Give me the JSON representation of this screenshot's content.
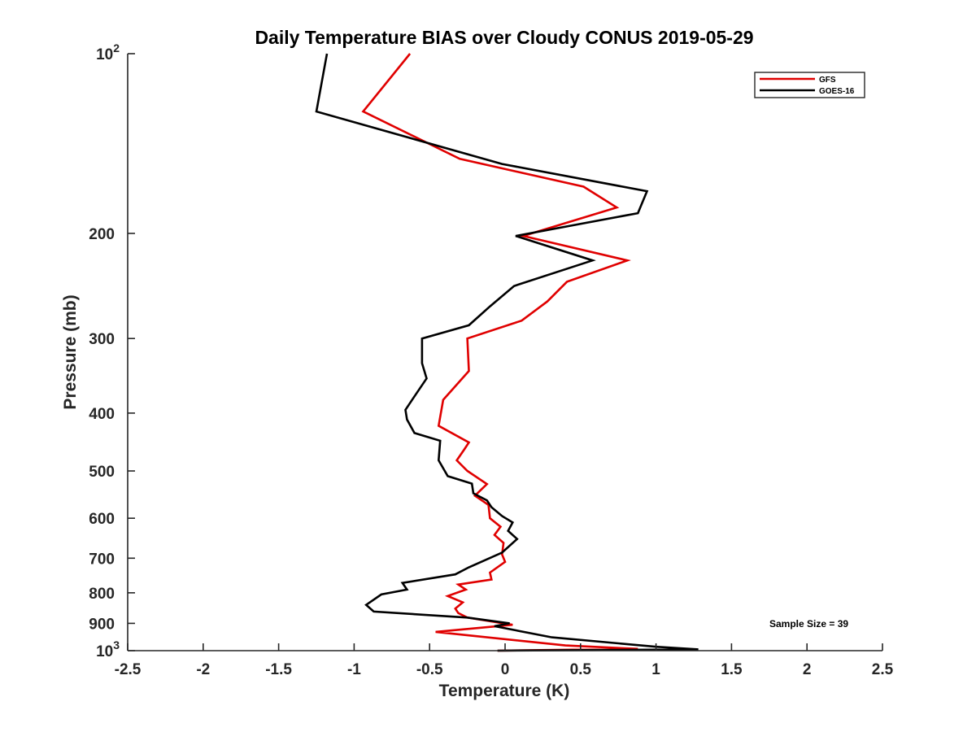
{
  "chart_data": {
    "type": "line",
    "title": "Daily Temperature BIAS over Cloudy CONUS 2019-05-29",
    "xlabel": "Temperature (K)",
    "ylabel": "Pressure (mb)",
    "xlim": [
      -2.5,
      2.5
    ],
    "ylim": [
      100,
      1000
    ],
    "y_scale": "log",
    "y_reversed": true,
    "x_ticks": [
      "-2.5",
      "-2",
      "-1.5",
      "-1",
      "-0.5",
      "0",
      "0.5",
      "1",
      "1.5",
      "2",
      "2.5"
    ],
    "y_ticks": [
      {
        "value": 100,
        "base": "10",
        "exp": "2"
      },
      {
        "value": 200,
        "label": "200"
      },
      {
        "value": 300,
        "label": "300"
      },
      {
        "value": 400,
        "label": "400"
      },
      {
        "value": 500,
        "label": "500"
      },
      {
        "value": 600,
        "label": "600"
      },
      {
        "value": 700,
        "label": "700"
      },
      {
        "value": 800,
        "label": "800"
      },
      {
        "value": 900,
        "label": "900"
      },
      {
        "value": 1000,
        "base": "10",
        "exp": "3"
      }
    ],
    "grid": false,
    "legend_position": "top-right",
    "annotation": "Sample Size = 39",
    "series": [
      {
        "name": "GFS",
        "color": "#e00000",
        "points": [
          [
            -0.63,
            100
          ],
          [
            -0.94,
            125
          ],
          [
            -0.3,
            150
          ],
          [
            0.52,
            167
          ],
          [
            0.74,
            181
          ],
          [
            0.12,
            202
          ],
          [
            0.81,
            222
          ],
          [
            0.41,
            241
          ],
          [
            0.28,
            260
          ],
          [
            0.11,
            280
          ],
          [
            -0.25,
            300
          ],
          [
            -0.24,
            340
          ],
          [
            -0.41,
            380
          ],
          [
            -0.44,
            420
          ],
          [
            -0.24,
            448
          ],
          [
            -0.27,
            460
          ],
          [
            -0.32,
            480
          ],
          [
            -0.25,
            500
          ],
          [
            -0.12,
            526
          ],
          [
            -0.2,
            550
          ],
          [
            -0.11,
            570
          ],
          [
            -0.1,
            600
          ],
          [
            -0.03,
            620
          ],
          [
            -0.07,
            640
          ],
          [
            -0.01,
            660
          ],
          [
            -0.02,
            690
          ],
          [
            0.0,
            710
          ],
          [
            -0.1,
            740
          ],
          [
            -0.09,
            760
          ],
          [
            -0.31,
            775
          ],
          [
            -0.26,
            790
          ],
          [
            -0.38,
            810
          ],
          [
            -0.28,
            830
          ],
          [
            -0.33,
            850
          ],
          [
            -0.31,
            865
          ],
          [
            -0.25,
            880
          ],
          [
            0.05,
            905
          ],
          [
            -0.46,
            930
          ],
          [
            0.4,
            980
          ],
          [
            0.88,
            993
          ],
          [
            -0.05,
            1000
          ]
        ]
      },
      {
        "name": "GOES-16",
        "color": "#000000",
        "points": [
          [
            -1.18,
            100
          ],
          [
            -1.25,
            125
          ],
          [
            -0.02,
            153
          ],
          [
            0.94,
            170
          ],
          [
            0.88,
            185
          ],
          [
            0.07,
            202
          ],
          [
            0.58,
            222
          ],
          [
            0.06,
            245
          ],
          [
            -0.1,
            265
          ],
          [
            -0.24,
            285
          ],
          [
            -0.55,
            300
          ],
          [
            -0.55,
            330
          ],
          [
            -0.52,
            350
          ],
          [
            -0.6,
            375
          ],
          [
            -0.66,
            395
          ],
          [
            -0.65,
            410
          ],
          [
            -0.6,
            432
          ],
          [
            -0.43,
            445
          ],
          [
            -0.44,
            480
          ],
          [
            -0.38,
            510
          ],
          [
            -0.22,
            525
          ],
          [
            -0.21,
            545
          ],
          [
            -0.12,
            560
          ],
          [
            -0.09,
            575
          ],
          [
            -0.02,
            595
          ],
          [
            0.05,
            610
          ],
          [
            0.02,
            630
          ],
          [
            0.08,
            650
          ],
          [
            -0.02,
            685
          ],
          [
            -0.24,
            725
          ],
          [
            -0.33,
            745
          ],
          [
            -0.68,
            770
          ],
          [
            -0.65,
            790
          ],
          [
            -0.82,
            805
          ],
          [
            -0.92,
            838
          ],
          [
            -0.87,
            860
          ],
          [
            -0.25,
            880
          ],
          [
            0.03,
            900
          ],
          [
            -0.07,
            910
          ],
          [
            0.31,
            950
          ],
          [
            1.0,
            985
          ],
          [
            1.28,
            995
          ],
          [
            -0.05,
            1000
          ]
        ]
      }
    ]
  }
}
